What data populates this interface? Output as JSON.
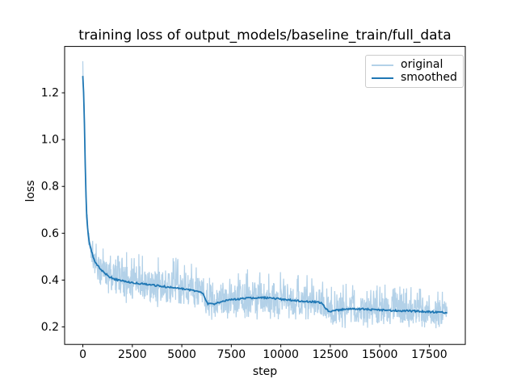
{
  "chart_data": {
    "type": "line",
    "title": "training loss of output_models/baseline_train/full_data",
    "xlabel": "step",
    "ylabel": "loss",
    "xticks": [
      0,
      2500,
      5000,
      7500,
      10000,
      12500,
      15000,
      17500
    ],
    "yticks": [
      0.2,
      0.4,
      0.6,
      0.8,
      1.0,
      1.2
    ],
    "xlim": [
      -920,
      19320
    ],
    "ylim": [
      0.125,
      1.398
    ],
    "grid": false,
    "background": "#ffffff",
    "legend": {
      "position": "upper right",
      "entries": [
        {
          "label": "original",
          "color": "#b3d1e8"
        },
        {
          "label": "smoothed",
          "color": "#1f77b4"
        }
      ]
    },
    "series": [
      {
        "name": "original",
        "color": "#b3d1e8",
        "description": "per-step noisy loss forming a band around the smoothed curve, with upward spikes up to about twice the band half-width; peak 1.335 at step 0",
        "x_end": 18400,
        "band_halfwidth": [
          [
            0,
            0.012
          ],
          [
            150,
            0.022
          ],
          [
            400,
            0.032
          ],
          [
            700,
            0.045
          ],
          [
            1100,
            0.055
          ],
          [
            1600,
            0.063
          ],
          [
            2200,
            0.068
          ],
          [
            3000,
            0.07
          ],
          [
            4000,
            0.068
          ],
          [
            5000,
            0.065
          ],
          [
            5900,
            0.06
          ],
          [
            6300,
            0.055
          ],
          [
            7000,
            0.06
          ],
          [
            8000,
            0.065
          ],
          [
            9000,
            0.068
          ],
          [
            10000,
            0.063
          ],
          [
            11000,
            0.06
          ],
          [
            12000,
            0.058
          ],
          [
            12600,
            0.055
          ],
          [
            13400,
            0.058
          ],
          [
            14500,
            0.056
          ],
          [
            15500,
            0.055
          ],
          [
            16500,
            0.053
          ],
          [
            17500,
            0.051
          ],
          [
            18400,
            0.05
          ]
        ]
      },
      {
        "name": "smoothed",
        "color": "#1f77b4",
        "keypoints": [
          [
            0,
            1.275
          ],
          [
            60,
            1.16
          ],
          [
            110,
            0.93
          ],
          [
            150,
            0.78
          ],
          [
            200,
            0.672
          ],
          [
            260,
            0.603
          ],
          [
            330,
            0.562
          ],
          [
            420,
            0.527
          ],
          [
            520,
            0.5
          ],
          [
            650,
            0.474
          ],
          [
            840,
            0.452
          ],
          [
            1050,
            0.434
          ],
          [
            1300,
            0.416
          ],
          [
            1600,
            0.404
          ],
          [
            2000,
            0.396
          ],
          [
            2500,
            0.389
          ],
          [
            3000,
            0.384
          ],
          [
            3500,
            0.379
          ],
          [
            4000,
            0.373
          ],
          [
            4500,
            0.368
          ],
          [
            5000,
            0.363
          ],
          [
            5500,
            0.357
          ],
          [
            5900,
            0.351
          ],
          [
            6100,
            0.342
          ],
          [
            6180,
            0.318
          ],
          [
            6300,
            0.299
          ],
          [
            6550,
            0.297
          ],
          [
            6900,
            0.305
          ],
          [
            7400,
            0.315
          ],
          [
            8000,
            0.32
          ],
          [
            8700,
            0.325
          ],
          [
            9300,
            0.324
          ],
          [
            9800,
            0.32
          ],
          [
            10300,
            0.316
          ],
          [
            10800,
            0.312
          ],
          [
            11300,
            0.309
          ],
          [
            11800,
            0.306
          ],
          [
            12100,
            0.301
          ],
          [
            12250,
            0.28
          ],
          [
            12420,
            0.266
          ],
          [
            12750,
            0.27
          ],
          [
            13150,
            0.274
          ],
          [
            13650,
            0.277
          ],
          [
            14150,
            0.276
          ],
          [
            14750,
            0.273
          ],
          [
            15350,
            0.271
          ],
          [
            15950,
            0.269
          ],
          [
            16550,
            0.268
          ],
          [
            17150,
            0.266
          ],
          [
            17750,
            0.263
          ],
          [
            18200,
            0.262
          ],
          [
            18400,
            0.26
          ]
        ]
      }
    ]
  }
}
